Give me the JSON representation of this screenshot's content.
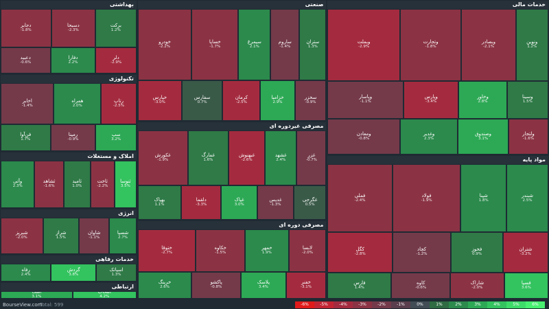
{
  "chart_data": {
    "type": "treemap",
    "sectors": [
      {
        "name": "خدمات مالی",
        "tiles": [
          {
            "symbol": "وبملت",
            "change": "-2.9%",
            "value": 40
          },
          {
            "symbol": "وتجارت",
            "change": "-1.8%",
            "value": 34
          },
          {
            "symbol": "وبصادر",
            "change": "-2.1%",
            "value": 30
          },
          {
            "symbol": "ونوین",
            "change": "1.2%",
            "value": 18
          },
          {
            "symbol": "وپاسار",
            "change": "-1.1%",
            "value": 22
          },
          {
            "symbol": "وپارس",
            "change": "-3.4%",
            "value": 16
          },
          {
            "symbol": "وخاور",
            "change": "2.8%",
            "value": 14
          },
          {
            "symbol": "وسینا",
            "change": "1.5%",
            "value": 12
          },
          {
            "symbol": "ومعادن",
            "change": "-0.8%",
            "value": 20
          },
          {
            "symbol": "وغدیر",
            "change": "2.3%",
            "value": 16
          },
          {
            "symbol": "وصندوق",
            "change": "3.1%",
            "value": 14
          },
          {
            "symbol": "ولتجار",
            "change": "-1.6%",
            "value": 11
          }
        ]
      },
      {
        "name": "مواد پایه",
        "tiles": [
          {
            "symbol": "فملی",
            "change": "-2.4%",
            "value": 34
          },
          {
            "symbol": "فولاد",
            "change": "-1.9%",
            "value": 36
          },
          {
            "symbol": "شپنا",
            "change": "1.8%",
            "value": 24
          },
          {
            "symbol": "شبندر",
            "change": "2.5%",
            "value": 22
          },
          {
            "symbol": "کگل",
            "change": "-2.8%",
            "value": 20
          },
          {
            "symbol": "کچاد",
            "change": "-1.2%",
            "value": 18
          },
          {
            "symbol": "فخوز",
            "change": "0.9%",
            "value": 16
          },
          {
            "symbol": "شتران",
            "change": "-3.2%",
            "value": 14
          },
          {
            "symbol": "فارس",
            "change": "1.4%",
            "value": 13
          },
          {
            "symbol": "کاوه",
            "change": "-0.6%",
            "value": 12
          },
          {
            "symbol": "شاراک",
            "change": "-2.0%",
            "value": 11
          },
          {
            "symbol": "فسپا",
            "change": "3.6%",
            "value": 9
          }
        ]
      },
      {
        "name": "صنعتی",
        "tiles": [
          {
            "symbol": "خودرو",
            "change": "-2.2%",
            "value": 30
          },
          {
            "symbol": "خساپا",
            "change": "-1.7%",
            "value": 26
          },
          {
            "symbol": "سیمرغ",
            "change": "2.1%",
            "value": 18
          },
          {
            "symbol": "ساروم",
            "change": "-1.4%",
            "value": 16
          },
          {
            "symbol": "ستران",
            "change": "1.3%",
            "value": 15
          },
          {
            "symbol": "خپارس",
            "change": "-3.0%",
            "value": 14
          },
          {
            "symbol": "سفارس",
            "change": "0.7%",
            "value": 13
          },
          {
            "symbol": "کرمان",
            "change": "-2.5%",
            "value": 12
          },
          {
            "symbol": "خزامیا",
            "change": "2.9%",
            "value": 11
          },
          {
            "symbol": "سخزر",
            "change": "-0.9%",
            "value": 10
          }
        ]
      },
      {
        "name": "مصرفی غیردوره ای",
        "tiles": [
          {
            "symbol": "غکورش",
            "change": "-1.9%",
            "value": 22
          },
          {
            "symbol": "غمارگ",
            "change": "1.6%",
            "value": 18
          },
          {
            "symbol": "غبهنوش",
            "change": "-2.6%",
            "value": 16
          },
          {
            "symbol": "غشهد",
            "change": "2.4%",
            "value": 14
          },
          {
            "symbol": "غزر",
            "change": "-0.7%",
            "value": 13
          },
          {
            "symbol": "بهپاک",
            "change": "1.1%",
            "value": 12
          },
          {
            "symbol": "دلقما",
            "change": "-3.3%",
            "value": 11
          },
          {
            "symbol": "غپاک",
            "change": "3.0%",
            "value": 10
          },
          {
            "symbol": "غدیس",
            "change": "-1.3%",
            "value": 10
          },
          {
            "symbol": "غگرجی",
            "change": "0.5%",
            "value": 9
          }
        ]
      },
      {
        "name": "مصرفی دوره ای",
        "tiles": [
          {
            "symbol": "ختوقا",
            "change": "-2.7%",
            "value": 20
          },
          {
            "symbol": "خکاوه",
            "change": "-1.5%",
            "value": 17
          },
          {
            "symbol": "خمهر",
            "change": "1.9%",
            "value": 15
          },
          {
            "symbol": "لابسا",
            "change": "-2.0%",
            "value": 13
          },
          {
            "symbol": "خرینگ",
            "change": "2.6%",
            "value": 12
          },
          {
            "symbol": "پاکشو",
            "change": "-0.8%",
            "value": 11
          },
          {
            "symbol": "پلاسک",
            "change": "3.4%",
            "value": 10
          },
          {
            "symbol": "خفنر",
            "change": "-3.1%",
            "value": 9
          }
        ]
      },
      {
        "name": "بهداشتی",
        "tiles": [
          {
            "symbol": "دجابر",
            "change": "-1.8%",
            "value": 16
          },
          {
            "symbol": "دسبحا",
            "change": "-2.3%",
            "value": 14
          },
          {
            "symbol": "برکت",
            "change": "1.2%",
            "value": 13
          },
          {
            "symbol": "دعبید",
            "change": "-0.6%",
            "value": 11
          },
          {
            "symbol": "دفارا",
            "change": "2.2%",
            "value": 10
          },
          {
            "symbol": "دلر",
            "change": "-2.9%",
            "value": 9
          }
        ]
      },
      {
        "name": "تکنولوژی",
        "tiles": [
          {
            "symbol": "اخابر",
            "change": "-1.4%",
            "value": 18
          },
          {
            "symbol": "همراه",
            "change": "2.0%",
            "value": 16
          },
          {
            "symbol": "رتاپ",
            "change": "-2.5%",
            "value": 12
          },
          {
            "symbol": "فن‌آوا",
            "change": "1.7%",
            "value": 11
          },
          {
            "symbol": "رمپنا",
            "change": "-0.9%",
            "value": 10
          },
          {
            "symbol": "سپ",
            "change": "3.2%",
            "value": 9
          }
        ]
      },
      {
        "name": "املاک و مستغلات",
        "tiles": [
          {
            "symbol": "وآتی",
            "change": "2.3%",
            "value": 14
          },
          {
            "symbol": "ثشاهد",
            "change": "-1.6%",
            "value": 12
          },
          {
            "symbol": "ثامید",
            "change": "1.0%",
            "value": 11
          },
          {
            "symbol": "ثاخت",
            "change": "-2.2%",
            "value": 10
          },
          {
            "symbol": "ثنوسا",
            "change": "3.5%",
            "value": 9
          }
        ]
      },
      {
        "name": "انرژی",
        "tiles": [
          {
            "symbol": "شبریز",
            "change": "-2.0%",
            "value": 14
          },
          {
            "symbol": "شراز",
            "change": "1.5%",
            "value": 12
          },
          {
            "symbol": "شاوان",
            "change": "-1.1%",
            "value": 10
          },
          {
            "symbol": "شسپا",
            "change": "2.7%",
            "value": 9
          }
        ]
      },
      {
        "name": "خدمات رفاهی",
        "tiles": [
          {
            "symbol": "رفاه",
            "change": "2.4%",
            "value": 10
          },
          {
            "symbol": "گردش",
            "change": "3.8%",
            "value": 9
          },
          {
            "symbol": "اسیاتک",
            "change": "1.3%",
            "value": 8
          }
        ]
      },
      {
        "name": "ارتباطی",
        "tiles": [
          {
            "symbol": "اسک",
            "change": "3.1%",
            "value": 9
          },
          {
            "symbol": "انتخاب",
            "change": "4.2%",
            "value": 8
          }
        ]
      }
    ],
    "legend": [
      "-6%",
      "-5%",
      "-4%",
      "-3%",
      "-2%",
      "-1%",
      "0%",
      "1%",
      "2%",
      "3%",
      "4%",
      "5%",
      "6%"
    ],
    "legend_colors": [
      "#e01a1a",
      "#c32434",
      "#a42b3f",
      "#8b3344",
      "#743a4a",
      "#5a3e4d",
      "#414c55",
      "#2f6b43",
      "#2b8a4c",
      "#2da955",
      "#33c35f",
      "#3ddc69",
      "#47f070"
    ]
  },
  "footer": {
    "brand": "BourseView.com",
    "total": "Total: 599"
  }
}
